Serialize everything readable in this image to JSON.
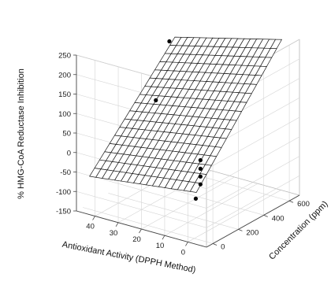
{
  "chart_data": {
    "type": "scatter3d-surface",
    "title": "",
    "x_axis": {
      "label": "Antioxidant Activity (DPPH Method)",
      "ticks": [
        0,
        10,
        20,
        30,
        40
      ],
      "tick_labels": [
        "0",
        "10",
        "20",
        "30",
        "40"
      ],
      "range": [
        -8,
        48
      ]
    },
    "y_axis": {
      "label": "Concentration (ppm)",
      "ticks": [
        0,
        200,
        400,
        600
      ],
      "tick_labels": [
        "0",
        "200",
        "400",
        "600"
      ],
      "range": [
        -50,
        680
      ]
    },
    "z_axis": {
      "label": "% HMG-CoA Reductase Inhibition",
      "ticks": [
        -150,
        -100,
        -50,
        0,
        50,
        100,
        150,
        200,
        250
      ],
      "tick_labels": [
        "-150",
        "-100",
        "-50",
        "0",
        "50",
        "100",
        "150",
        "200",
        "250"
      ],
      "range": [
        -150,
        250
      ]
    },
    "surface": {
      "grid_rows": 17,
      "grid_cols": 17,
      "corners": {
        "low_x_low_c": -25,
        "high_x_low_c": -60,
        "low_x_high_c": 245,
        "high_x_high_c": 175
      }
    },
    "points": [
      {
        "x": 42,
        "c": 570,
        "z": 182
      },
      {
        "x": 33,
        "c": 300,
        "z": 95
      },
      {
        "x": 2,
        "c": 85,
        "z": 32
      },
      {
        "x": 2,
        "c": 85,
        "z": 10
      },
      {
        "x": 2,
        "c": 85,
        "z": -10
      },
      {
        "x": 2,
        "c": 85,
        "z": -30
      },
      {
        "x": 1,
        "c": 30,
        "z": -55
      }
    ],
    "grid": true
  }
}
